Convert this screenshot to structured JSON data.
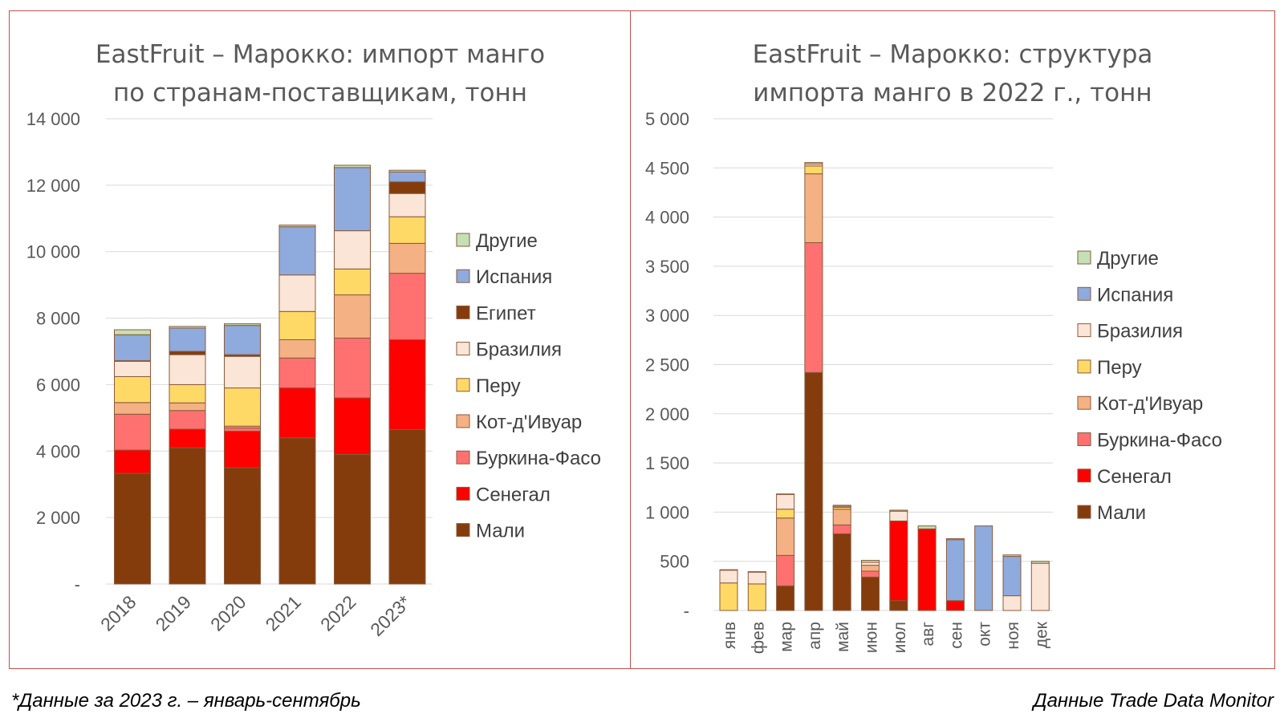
{
  "footnote": "*Данные за 2023 г. – январь-сентябрь",
  "source": "Данные Trade Data Monitor",
  "colors": {
    "Мали": "#843c0c",
    "Сенегал": "#ff0000",
    "Буркина-Фасо": "#ff7171",
    "Кот-д'Ивуар": "#f4b183",
    "Перу": "#ffd966",
    "Бразилия": "#fbe5d6",
    "Египет": "#843c0c",
    "Испания": "#8faadc",
    "Другие": "#c5e0b4"
  },
  "chart_data": [
    {
      "type": "bar",
      "stacked": true,
      "title": [
        "EastFruit – Марокко: импорт манго",
        "по странам-поставщикам, тонн"
      ],
      "categories": [
        "2018",
        "2019",
        "2020",
        "2021",
        "2022",
        "2023*"
      ],
      "ylim": [
        0,
        14000
      ],
      "yticks": [
        0,
        2000,
        4000,
        6000,
        8000,
        10000,
        12000,
        14000
      ],
      "ytick_labels": [
        "-",
        "2 000",
        "4 000",
        "6 000",
        "8 000",
        "10 000",
        "12 000",
        "14 000"
      ],
      "grid": true,
      "legend_position": "right",
      "legend_order": [
        "Другие",
        "Испания",
        "Египет",
        "Бразилия",
        "Перу",
        "Кот-д'Ивуар",
        "Буркина-Фасо",
        "Сенегал",
        "Мали"
      ],
      "series": [
        {
          "name": "Мали",
          "values": [
            3330,
            4100,
            3500,
            4400,
            3900,
            4650
          ]
        },
        {
          "name": "Сенегал",
          "values": [
            700,
            560,
            1100,
            1500,
            1700,
            2700
          ]
        },
        {
          "name": "Буркина-Фасо",
          "values": [
            1080,
            560,
            100,
            900,
            1800,
            2000
          ]
        },
        {
          "name": "Кот-д'Ивуар",
          "values": [
            350,
            230,
            50,
            550,
            1300,
            900
          ]
        },
        {
          "name": "Перу",
          "values": [
            780,
            550,
            1150,
            850,
            780,
            800
          ]
        },
        {
          "name": "Бразилия",
          "values": [
            460,
            900,
            950,
            1100,
            1150,
            700
          ]
        },
        {
          "name": "Египет",
          "values": [
            20,
            100,
            50,
            0,
            0,
            350
          ]
        },
        {
          "name": "Испания",
          "values": [
            780,
            700,
            880,
            1450,
            1900,
            300
          ]
        },
        {
          "name": "Другие",
          "values": [
            150,
            50,
            50,
            50,
            70,
            50
          ]
        }
      ]
    },
    {
      "type": "bar",
      "stacked": true,
      "title": [
        "EastFruit – Марокко: структура",
        "импорта манго в 2022 г., тонн"
      ],
      "categories": [
        "янв",
        "фев",
        "мар",
        "апр",
        "май",
        "июн",
        "июл",
        "авг",
        "сен",
        "окт",
        "ноя",
        "дек"
      ],
      "ylim": [
        0,
        5000
      ],
      "yticks": [
        0,
        500,
        1000,
        1500,
        2000,
        2500,
        3000,
        3500,
        4000,
        4500,
        5000
      ],
      "ytick_labels": [
        "-",
        "500",
        "1 000",
        "1 500",
        "2 000",
        "2 500",
        "3 000",
        "3 500",
        "4 000",
        "4 500",
        "5 000"
      ],
      "grid": true,
      "legend_position": "right",
      "legend_order": [
        "Другие",
        "Испания",
        "Бразилия",
        "Перу",
        "Кот-д'Ивуар",
        "Буркина-Фасо",
        "Сенегал",
        "Мали"
      ],
      "series": [
        {
          "name": "Мали",
          "values": [
            0,
            0,
            250,
            2420,
            780,
            340,
            100,
            0,
            0,
            0,
            0,
            0
          ]
        },
        {
          "name": "Сенегал",
          "values": [
            0,
            0,
            0,
            0,
            0,
            0,
            810,
            830,
            100,
            0,
            0,
            0
          ]
        },
        {
          "name": "Буркина-Фасо",
          "values": [
            0,
            0,
            310,
            1320,
            90,
            60,
            0,
            0,
            0,
            0,
            0,
            0
          ]
        },
        {
          "name": "Кот-д'Ивуар",
          "values": [
            0,
            0,
            380,
            700,
            160,
            60,
            0,
            0,
            0,
            0,
            0,
            0
          ]
        },
        {
          "name": "Перу",
          "values": [
            280,
            270,
            90,
            80,
            20,
            0,
            0,
            0,
            0,
            0,
            0,
            0
          ]
        },
        {
          "name": "Бразилия",
          "values": [
            130,
            120,
            150,
            20,
            10,
            30,
            100,
            0,
            0,
            0,
            150,
            480
          ]
        },
        {
          "name": "Испания",
          "values": [
            0,
            0,
            0,
            0,
            0,
            0,
            0,
            0,
            620,
            860,
            400,
            0
          ]
        },
        {
          "name": "Другие",
          "values": [
            5,
            5,
            5,
            15,
            10,
            20,
            10,
            30,
            10,
            0,
            15,
            20
          ]
        }
      ]
    }
  ]
}
